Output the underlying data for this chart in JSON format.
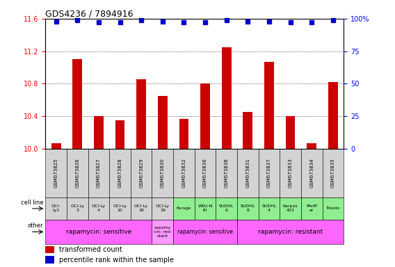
{
  "title": "GDS4236 / 7894916",
  "samples": [
    "GSM673825",
    "GSM673826",
    "GSM673827",
    "GSM673828",
    "GSM673829",
    "GSM673830",
    "GSM673832",
    "GSM673836",
    "GSM673838",
    "GSM673831",
    "GSM673837",
    "GSM673833",
    "GSM673834",
    "GSM673835"
  ],
  "bar_values": [
    10.07,
    11.1,
    10.4,
    10.35,
    10.85,
    10.65,
    10.37,
    10.8,
    11.25,
    10.45,
    11.07,
    10.4,
    10.07,
    10.82
  ],
  "dot_values": [
    98,
    99,
    97,
    97,
    99,
    98,
    97,
    97,
    99,
    98,
    98,
    97,
    97,
    99
  ],
  "ylim_left": [
    10.0,
    11.6
  ],
  "ylim_right": [
    0,
    100
  ],
  "yticks_left": [
    10.0,
    10.4,
    10.8,
    11.2,
    11.6
  ],
  "yticks_right": [
    0,
    25,
    50,
    75,
    100
  ],
  "bar_color": "#cc0000",
  "dot_color": "#0000cc",
  "sample_bg": "#d3d3d3",
  "cell_line_labels": [
    "OCI-\nLy1",
    "OCI-Ly\n3",
    "OCI-Ly\n4",
    "OCI-Ly\n10",
    "OCI-Ly\n18",
    "OCI-Ly\n19",
    "Farage",
    "WSU-N\nIH",
    "SUDHL\n6",
    "SUDHL\n8",
    "SUDHL\n4",
    "Karpas\n422",
    "Pfeiff\ner",
    "Toledo"
  ],
  "cell_line_colors": [
    "#d3d3d3",
    "#d3d3d3",
    "#d3d3d3",
    "#d3d3d3",
    "#d3d3d3",
    "#d3d3d3",
    "#90ee90",
    "#90ee90",
    "#90ee90",
    "#90ee90",
    "#90ee90",
    "#90ee90",
    "#90ee90",
    "#90ee90"
  ],
  "other_groups": [
    {
      "label": "rapamycin: sensitive",
      "start": 0,
      "end": 5,
      "color": "#ff66ff"
    },
    {
      "label": "rapamy\ncin: resi\nstant",
      "start": 5,
      "end": 6,
      "color": "#ff99ff"
    },
    {
      "label": "rapamycin: sensitive",
      "start": 6,
      "end": 9,
      "color": "#ff66ff"
    },
    {
      "label": "rapamycin: resistant",
      "start": 9,
      "end": 14,
      "color": "#ff66ff"
    }
  ]
}
